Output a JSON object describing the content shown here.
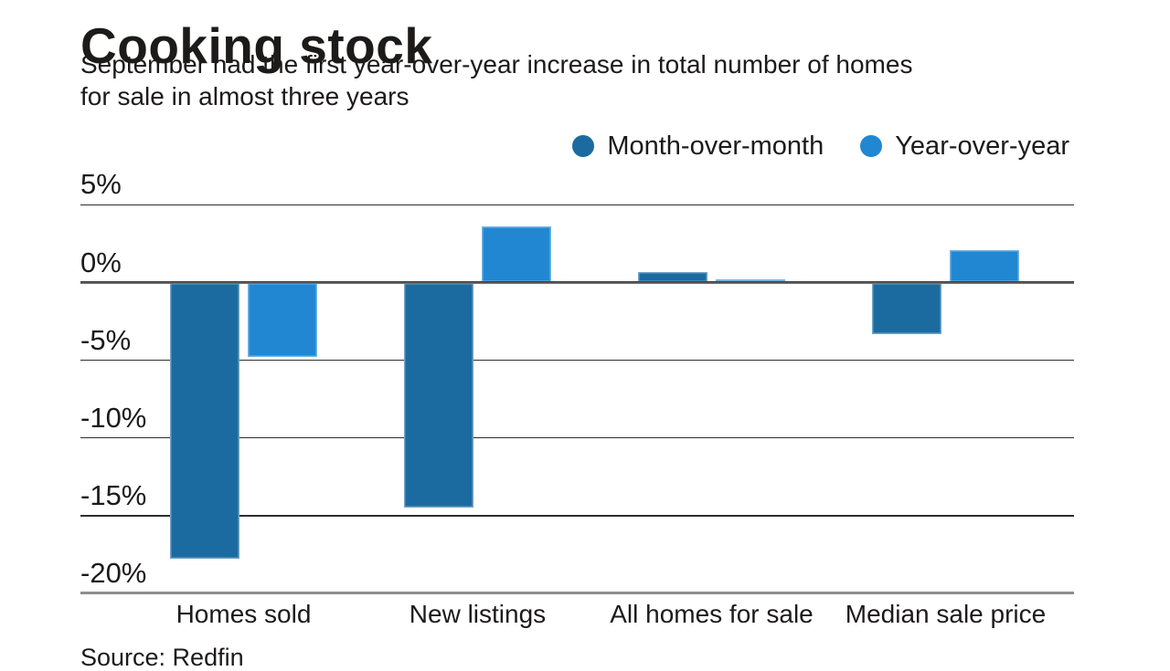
{
  "header": {
    "title": "Cooking stock",
    "subtitle_line1": "September had the first year-over-year increase in total number of homes",
    "subtitle_line2": "for sale in almost three years"
  },
  "legend": [
    {
      "label": "Month-over-month",
      "color": "#1c6ba0"
    },
    {
      "label": "Year-over-year",
      "color": "#2187d2"
    }
  ],
  "chart_data": {
    "type": "bar",
    "title": "Cooking stock",
    "subtitle": "September had the first year-over-year increase in total number of homes for sale in almost three years",
    "categories": [
      "Homes sold",
      "New listings",
      "All homes for sale",
      "Median sale price"
    ],
    "series": [
      {
        "name": "Month-over-month",
        "color": "#1c6ba0",
        "values": [
          -17.8,
          -14.5,
          0.7,
          -3.3
        ]
      },
      {
        "name": "Year-over-year",
        "color": "#2187d2",
        "values": [
          -4.8,
          3.6,
          0.2,
          2.1
        ]
      }
    ],
    "unit": "%",
    "ylim": [
      -20,
      5
    ],
    "ytick_values": [
      5,
      0,
      -5,
      -10,
      -15,
      -20
    ],
    "ytick_labels": [
      "5%",
      "0%",
      "-5%",
      "-10%",
      "-15%",
      "-20%"
    ],
    "grid": true,
    "legend_position": "top-right",
    "colors": {
      "month_over_month": "#1c6ba0",
      "year_over_year": "#2187d2"
    }
  },
  "footer": {
    "source": "Source: Redfin"
  }
}
